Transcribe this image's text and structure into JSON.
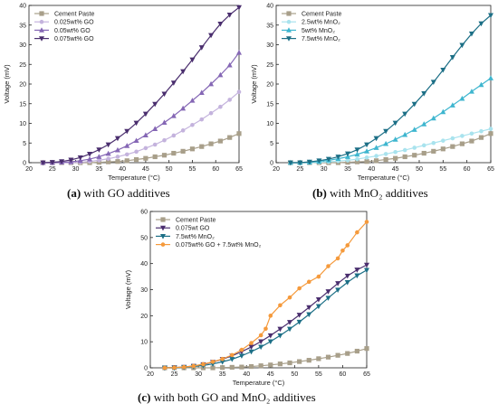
{
  "captions": [
    {
      "letter": "(a)",
      "text": " with GO additives"
    },
    {
      "letter": "(b)",
      "text": " with MnO₂ additives"
    },
    {
      "letter": "(c)",
      "text": " with both GO and MnO₂ additives"
    }
  ],
  "chart_data": [
    {
      "type": "line",
      "xlabel": "Temperature (°C)",
      "ylabel": "Voltage (mV)",
      "xlim": [
        20,
        65
      ],
      "ylim": [
        0,
        40
      ],
      "xticks": [
        20,
        25,
        30,
        35,
        40,
        45,
        50,
        55,
        60,
        65
      ],
      "yticks": [
        0,
        5,
        10,
        15,
        20,
        25,
        30,
        35,
        40
      ],
      "legend_position": "top-left",
      "grid": false,
      "series": [
        {
          "name": "Cement Paste",
          "color": "#a89f8a",
          "marker": "square",
          "x": [
            23,
            25,
            27,
            29,
            31,
            33,
            35,
            37,
            39,
            41,
            43,
            45,
            47,
            49,
            51,
            53,
            55,
            57,
            59,
            61,
            63,
            65
          ],
          "y": [
            0,
            0,
            0,
            0,
            0,
            0,
            0.1,
            0.2,
            0.3,
            0.5,
            0.8,
            1.1,
            1.5,
            1.9,
            2.4,
            2.9,
            3.5,
            4.1,
            4.8,
            5.5,
            6.4,
            7.4
          ]
        },
        {
          "name": "0.025wt% GO",
          "color": "#c4b3dd",
          "marker": "circle",
          "x": [
            23,
            25,
            27,
            29,
            31,
            33,
            35,
            37,
            39,
            41,
            43,
            45,
            47,
            49,
            51,
            53,
            55,
            57,
            59,
            61,
            63,
            65
          ],
          "y": [
            0,
            0,
            0,
            0,
            0.1,
            0.3,
            0.6,
            1.0,
            1.5,
            2.1,
            2.8,
            3.7,
            4.6,
            5.7,
            6.9,
            8.2,
            9.6,
            11.0,
            12.6,
            14.2,
            16.0,
            18.0
          ]
        },
        {
          "name": "0.05wt% GO",
          "color": "#8567b5",
          "marker": "triangle-up",
          "x": [
            23,
            25,
            27,
            29,
            31,
            33,
            35,
            37,
            39,
            41,
            43,
            45,
            47,
            49,
            51,
            53,
            55,
            57,
            59,
            61,
            63,
            65
          ],
          "y": [
            0,
            0,
            0.1,
            0.2,
            0.5,
            0.9,
            1.5,
            2.3,
            3.2,
            4.3,
            5.6,
            7.0,
            8.6,
            10.2,
            11.9,
            13.8,
            15.8,
            17.8,
            20.0,
            22.3,
            24.8,
            28.0
          ]
        },
        {
          "name": "0.075wt% GO",
          "color": "#4a2e6e",
          "marker": "triangle-down",
          "x": [
            23,
            25,
            27,
            29,
            31,
            33,
            35,
            37,
            39,
            41,
            43,
            45,
            47,
            49,
            51,
            53,
            55,
            57,
            59,
            61,
            63,
            65
          ],
          "y": [
            0,
            0.1,
            0.3,
            0.7,
            1.3,
            2.2,
            3.3,
            4.6,
            6.2,
            8.0,
            10.1,
            12.4,
            14.9,
            17.5,
            20.3,
            23.2,
            26.2,
            29.3,
            32.4,
            35.3,
            37.6,
            39.5
          ]
        }
      ]
    },
    {
      "type": "line",
      "xlabel": "Temperature (°C)",
      "ylabel": "Voltage (mV)",
      "xlim": [
        20,
        65
      ],
      "ylim": [
        0,
        40
      ],
      "xticks": [
        20,
        25,
        30,
        35,
        40,
        45,
        50,
        55,
        60,
        65
      ],
      "yticks": [
        0,
        5,
        10,
        15,
        20,
        25,
        30,
        35,
        40
      ],
      "legend_position": "top-left",
      "grid": false,
      "series": [
        {
          "name": "Cement Paste",
          "color": "#a89f8a",
          "marker": "square",
          "x": [
            23,
            25,
            27,
            29,
            31,
            33,
            35,
            37,
            39,
            41,
            43,
            45,
            47,
            49,
            51,
            53,
            55,
            57,
            59,
            61,
            63,
            65
          ],
          "y": [
            0,
            0,
            0,
            0,
            0,
            0,
            0.1,
            0.2,
            0.3,
            0.5,
            0.8,
            1.1,
            1.5,
            1.9,
            2.4,
            2.9,
            3.5,
            4.1,
            4.8,
            5.5,
            6.4,
            7.4
          ]
        },
        {
          "name": "2.5wt% MnO₂",
          "color": "#a9e3ee",
          "marker": "circle",
          "x": [
            23,
            25,
            27,
            29,
            31,
            33,
            35,
            37,
            39,
            41,
            43,
            45,
            47,
            49,
            51,
            53,
            55,
            57,
            59,
            61,
            63,
            65
          ],
          "y": [
            0,
            0,
            0,
            0.1,
            0.2,
            0.4,
            0.6,
            0.9,
            1.3,
            1.7,
            2.2,
            2.7,
            3.2,
            3.8,
            4.4,
            5.0,
            5.6,
            6.2,
            6.8,
            7.4,
            8.0,
            8.6
          ]
        },
        {
          "name": "5wt% MnO₂",
          "color": "#3fb6cf",
          "marker": "triangle-up",
          "x": [
            23,
            25,
            27,
            29,
            31,
            33,
            35,
            37,
            39,
            41,
            43,
            45,
            47,
            49,
            51,
            53,
            55,
            57,
            59,
            61,
            63,
            65
          ],
          "y": [
            0,
            0,
            0.1,
            0.3,
            0.6,
            1.0,
            1.5,
            2.1,
            2.9,
            3.8,
            4.8,
            5.9,
            7.1,
            8.4,
            9.8,
            11.3,
            12.9,
            14.6,
            16.3,
            18.1,
            19.8,
            21.5
          ]
        },
        {
          "name": "7.5wt% MnO₂",
          "color": "#1c6f86",
          "marker": "triangle-down",
          "x": [
            23,
            25,
            27,
            29,
            31,
            33,
            35,
            37,
            39,
            41,
            43,
            45,
            47,
            49,
            51,
            53,
            55,
            57,
            59,
            61,
            63,
            65
          ],
          "y": [
            0,
            0,
            0.2,
            0.5,
            0.9,
            1.5,
            2.3,
            3.3,
            4.6,
            6.2,
            8.0,
            10.1,
            12.4,
            14.9,
            17.6,
            20.5,
            23.6,
            26.8,
            29.9,
            32.8,
            35.4,
            37.5
          ]
        }
      ]
    },
    {
      "type": "line",
      "xlabel": "Temperature (°C)",
      "ylabel": "Voltage (mV)",
      "xlim": [
        20,
        65
      ],
      "ylim": [
        0,
        60
      ],
      "xticks": [
        20,
        25,
        30,
        35,
        40,
        45,
        50,
        55,
        60,
        65
      ],
      "yticks": [
        0,
        10,
        20,
        30,
        40,
        50,
        60
      ],
      "legend_position": "top-left",
      "grid": false,
      "series": [
        {
          "name": "Cement Paste",
          "color": "#a89f8a",
          "marker": "square",
          "x": [
            23,
            25,
            27,
            29,
            31,
            33,
            35,
            37,
            39,
            41,
            43,
            45,
            47,
            49,
            51,
            53,
            55,
            57,
            59,
            61,
            63,
            65
          ],
          "y": [
            0,
            0,
            0,
            0,
            0,
            0,
            0.1,
            0.2,
            0.3,
            0.5,
            0.8,
            1.1,
            1.5,
            1.9,
            2.4,
            2.9,
            3.5,
            4.1,
            4.8,
            5.5,
            6.4,
            7.4
          ]
        },
        {
          "name": "0.075wt GO",
          "color": "#4a2e6e",
          "marker": "triangle-down",
          "x": [
            23,
            25,
            27,
            29,
            31,
            33,
            35,
            37,
            39,
            41,
            43,
            45,
            47,
            49,
            51,
            53,
            55,
            57,
            59,
            61,
            63,
            65
          ],
          "y": [
            0,
            0.1,
            0.3,
            0.7,
            1.3,
            2.2,
            3.3,
            4.6,
            6.2,
            8.0,
            10.1,
            12.4,
            14.9,
            17.5,
            20.3,
            23.2,
            26.2,
            29.3,
            32.4,
            35.3,
            37.6,
            39.5
          ]
        },
        {
          "name": "7.5wt% MnO₂",
          "color": "#1c6f86",
          "marker": "triangle-down",
          "x": [
            23,
            25,
            27,
            29,
            31,
            33,
            35,
            37,
            39,
            41,
            43,
            45,
            47,
            49,
            51,
            53,
            55,
            57,
            59,
            61,
            63,
            65
          ],
          "y": [
            0,
            0,
            0.2,
            0.5,
            0.9,
            1.5,
            2.3,
            3.3,
            4.6,
            6.2,
            8.0,
            10.1,
            12.4,
            14.9,
            17.6,
            20.5,
            23.6,
            26.8,
            29.9,
            32.8,
            35.4,
            37.5
          ]
        },
        {
          "name": "0.075wt% GO + 7.5wt% MnO₂",
          "color": "#f59a3c",
          "marker": "circle",
          "x": [
            23,
            25,
            27,
            29,
            31,
            33,
            35,
            37,
            39,
            41,
            43,
            44,
            45,
            47,
            49,
            51,
            53,
            55,
            57,
            59,
            60,
            61,
            63,
            65
          ],
          "y": [
            0,
            0.1,
            0.3,
            0.7,
            1.4,
            2.3,
            3.4,
            4.9,
            6.9,
            9.5,
            12.5,
            15.0,
            20.0,
            24.0,
            27.0,
            30.5,
            33.0,
            35.0,
            39.0,
            42.0,
            45.0,
            47.0,
            52.0,
            56.0
          ]
        }
      ]
    }
  ]
}
